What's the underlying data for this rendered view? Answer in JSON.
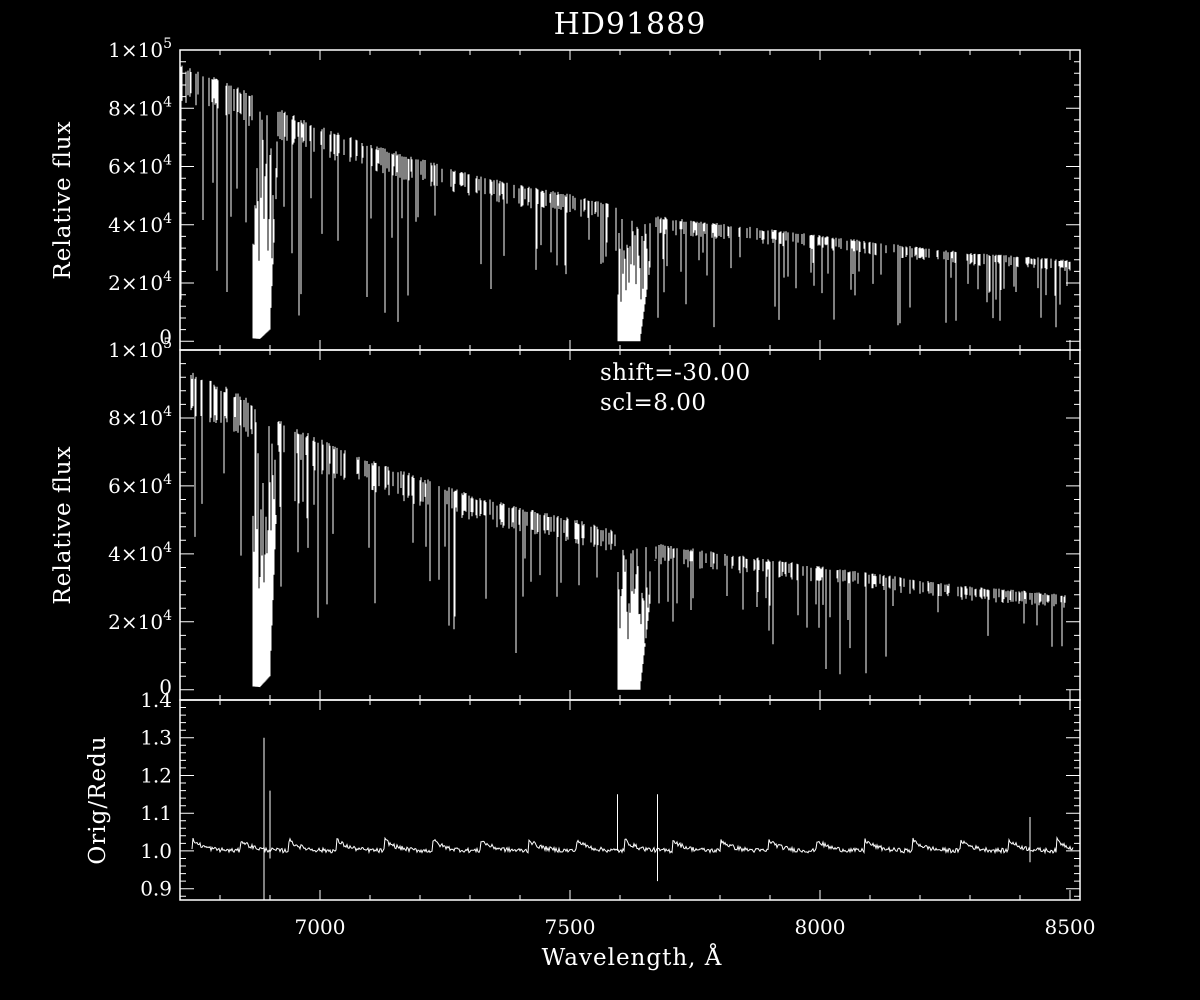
{
  "chart_data": {
    "type": "line",
    "title": "HD91889",
    "xlabel": "Wavelength, Å",
    "xlim": [
      6720,
      8520
    ],
    "xticks": [
      {
        "value": 7000,
        "label": "7000"
      },
      {
        "value": 7500,
        "label": "7500"
      },
      {
        "value": 8000,
        "label": "8000"
      },
      {
        "value": 8500,
        "label": "8500"
      }
    ],
    "panels": [
      {
        "id": "original",
        "ylabel": "Relative flux",
        "ylim": [
          -3000,
          100000
        ],
        "yticks": [
          {
            "value": 0,
            "mantissa": "0",
            "exp": ""
          },
          {
            "value": 20000,
            "mantissa": "2×10",
            "exp": "4"
          },
          {
            "value": 40000,
            "mantissa": "4×10",
            "exp": "4"
          },
          {
            "value": 60000,
            "mantissa": "6×10",
            "exp": "4"
          },
          {
            "value": 80000,
            "mantissa": "8×10",
            "exp": "4"
          },
          {
            "value": 100000,
            "mantissa": "1×10",
            "exp": "5"
          }
        ],
        "continuum": {
          "x": [
            6720,
            6800,
            6870,
            6900,
            7000,
            7100,
            7200,
            7300,
            7400,
            7500,
            7595,
            7600,
            7700,
            7800,
            7900,
            8000,
            8100,
            8200,
            8300,
            8400,
            8500,
            8520
          ],
          "y": [
            94000,
            89000,
            84000,
            80000,
            73000,
            67000,
            62000,
            57000,
            53000,
            50000,
            46000,
            44000,
            42000,
            40000,
            38000,
            36000,
            34000,
            32000,
            30000,
            29000,
            27500,
            27000
          ]
        },
        "absorption_bands": [
          {
            "x": [
              6865,
              6880,
              6900,
              6915
            ],
            "y": [
              1000,
              800,
              4000,
              60000
            ]
          },
          {
            "x": [
              7595,
              7610,
              7640,
              7670
            ],
            "y": [
              0,
              0,
              0,
              38000
            ]
          }
        ]
      },
      {
        "id": "reduced",
        "ylabel": "Relative flux",
        "ylim": [
          -3000,
          100000
        ],
        "annotations": [
          "shift=-30.00",
          "scl=8.00"
        ],
        "yticks": [
          {
            "value": 0,
            "mantissa": "0",
            "exp": ""
          },
          {
            "value": 20000,
            "mantissa": "2×10",
            "exp": "4"
          },
          {
            "value": 40000,
            "mantissa": "4×10",
            "exp": "4"
          },
          {
            "value": 60000,
            "mantissa": "6×10",
            "exp": "4"
          },
          {
            "value": 80000,
            "mantissa": "8×10",
            "exp": "4"
          },
          {
            "value": 100000,
            "mantissa": "1×10",
            "exp": "5"
          }
        ],
        "continuum": {
          "x": [
            6720,
            6800,
            6870,
            6900,
            7000,
            7100,
            7200,
            7300,
            7400,
            7500,
            7595,
            7600,
            7700,
            7800,
            7900,
            8000,
            8100,
            8200,
            8300,
            8400,
            8500,
            8520
          ],
          "y": [
            94000,
            89000,
            84000,
            80000,
            73000,
            67000,
            62000,
            57000,
            53000,
            50000,
            46000,
            44000,
            42000,
            40000,
            38000,
            36000,
            34000,
            32000,
            30000,
            29000,
            27500,
            27000
          ]
        },
        "absorption_bands": [
          {
            "x": [
              6865,
              6880,
              6900,
              6915
            ],
            "y": [
              1000,
              800,
              4000,
              60000
            ]
          },
          {
            "x": [
              7595,
              7610,
              7640,
              7670
            ],
            "y": [
              0,
              0,
              0,
              38000
            ]
          }
        ]
      },
      {
        "id": "ratio",
        "ylabel": "Orig/Redu",
        "ylim": [
          0.87,
          1.4
        ],
        "yticks": [
          {
            "value": 0.9,
            "mantissa": "0.9",
            "exp": ""
          },
          {
            "value": 1.0,
            "mantissa": "1.0",
            "exp": ""
          },
          {
            "value": 1.1,
            "mantissa": "1.1",
            "exp": ""
          },
          {
            "value": 1.2,
            "mantissa": "1.2",
            "exp": ""
          },
          {
            "value": 1.3,
            "mantissa": "1.3",
            "exp": ""
          },
          {
            "value": 1.4,
            "mantissa": "1.4",
            "exp": ""
          }
        ],
        "spikes": [
          {
            "x": 6888,
            "high": 1.3,
            "low": 0.87
          },
          {
            "x": 6900,
            "high": 1.16,
            "low": 0.98
          },
          {
            "x": 7595,
            "high": 1.15,
            "low": 1.0
          },
          {
            "x": 7675,
            "high": 1.15,
            "low": 0.92
          },
          {
            "x": 8420,
            "high": 1.09,
            "low": 0.97
          }
        ]
      }
    ],
    "grid": false,
    "legend": "none"
  },
  "colors": {
    "background": "#000000",
    "foreground": "#ffffff"
  }
}
